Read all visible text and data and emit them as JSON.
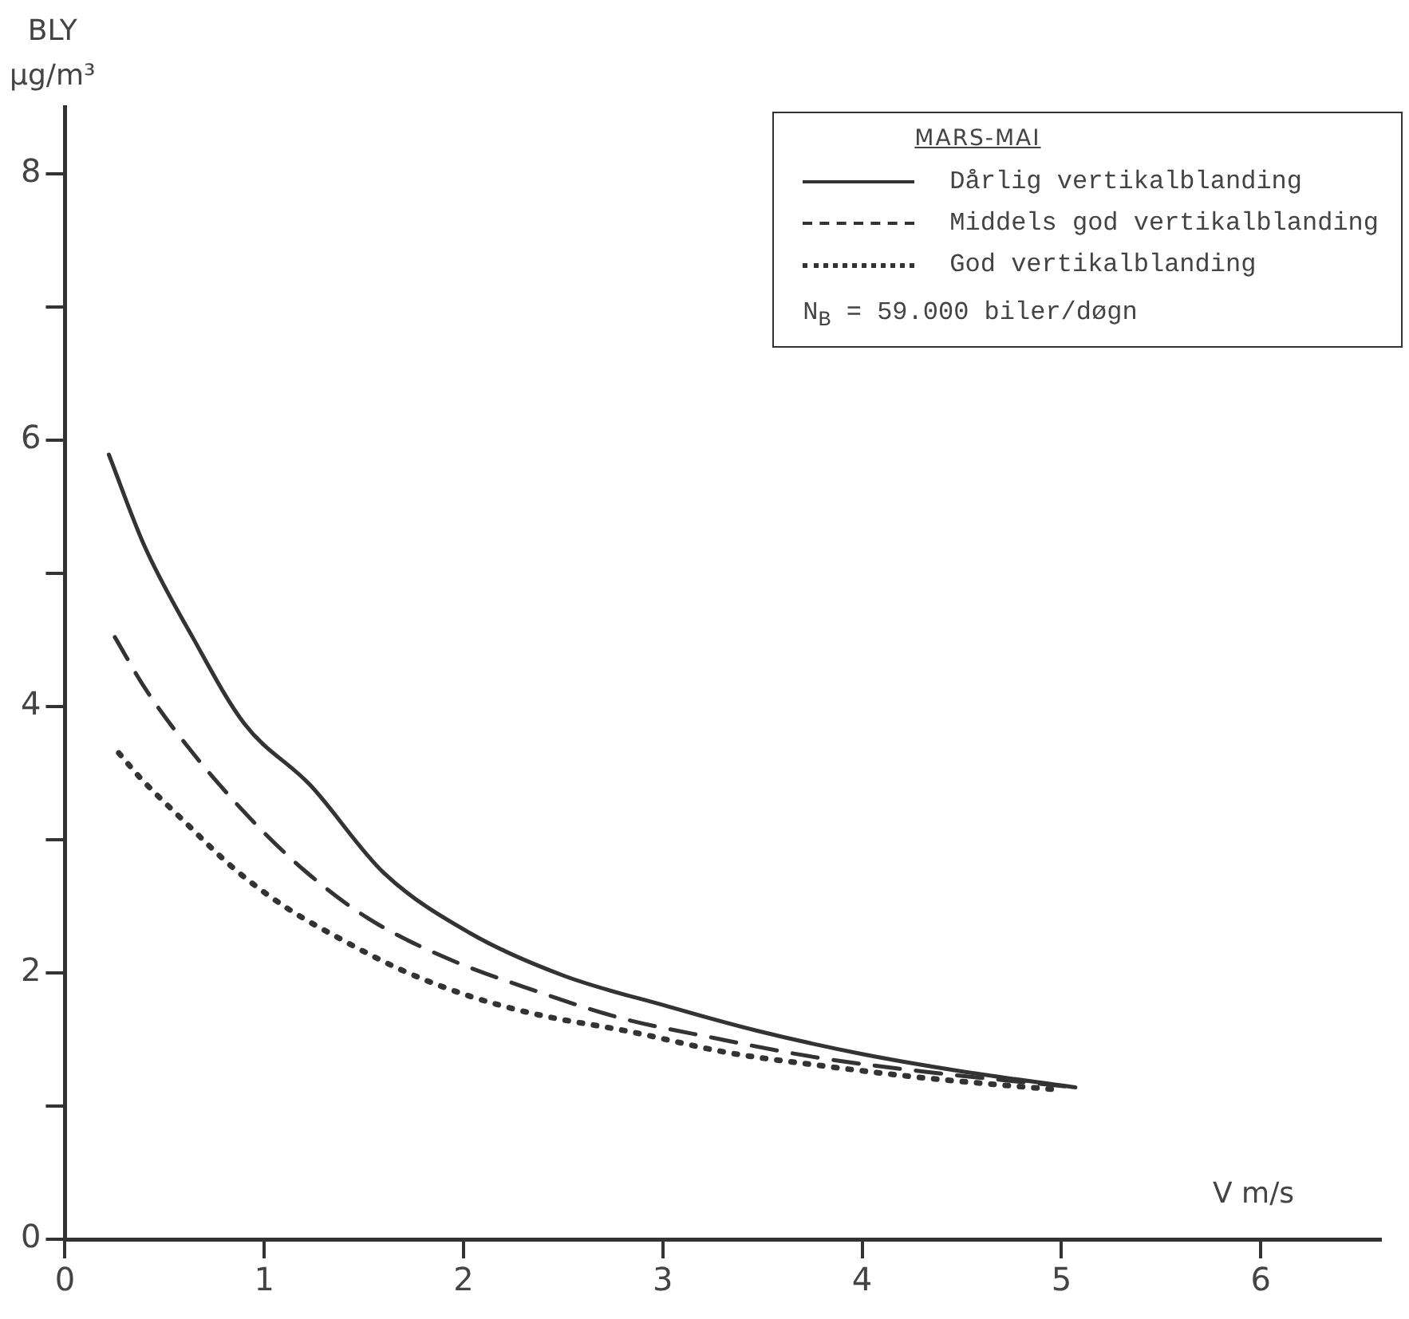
{
  "chart_data": {
    "type": "line",
    "xlabel": "V m/s",
    "ylabel": "BLY\nµg/m³",
    "legend_title": "MARS-MAI",
    "legend": "top right",
    "grid": false,
    "marker": "none",
    "xlim": [
      0,
      6.6
    ],
    "xticks": [
      0,
      1,
      2,
      3,
      4,
      5,
      6
    ],
    "ylim": [
      0,
      8.5
    ],
    "yticks": [
      0,
      {
        "value": 1,
        "label": null
      },
      2,
      {
        "value": 3,
        "label": null
      },
      4,
      {
        "value": 5,
        "label": null
      },
      6,
      {
        "value": 7,
        "label": null
      },
      8
    ],
    "annotations": [
      "N$_{B}$ = 59.000 biler/døgn"
    ],
    "series": [
      {
        "name": "Dårlig vertikalblanding",
        "color": "#333333",
        "line_style": "solid",
        "x": [
          0.22,
          0.4,
          0.64,
          0.9,
          1.23,
          1.6,
          2.03,
          2.5,
          3.02,
          3.46,
          4.0,
          4.5,
          5.07
        ],
        "values": [
          5.89,
          5.2,
          4.52,
          3.87,
          3.41,
          2.75,
          2.3,
          1.98,
          1.75,
          1.57,
          1.39,
          1.26,
          1.14
        ]
      },
      {
        "name": "Middels god vertikalblanding",
        "color": "#333333",
        "line_style": "dashed",
        "x": [
          0.25,
          0.4,
          0.62,
          0.91,
          1.2,
          1.52,
          1.9,
          2.35,
          2.79,
          3.26,
          3.75,
          4.3,
          5.07
        ],
        "values": [
          4.52,
          4.14,
          3.69,
          3.19,
          2.77,
          2.41,
          2.12,
          1.87,
          1.66,
          1.51,
          1.37,
          1.26,
          1.14
        ]
      },
      {
        "name": "God vertikalblanding",
        "color": "#333333",
        "line_style": "dotted",
        "x": [
          0.27,
          0.38,
          0.61,
          0.85,
          1.11,
          1.4,
          1.69,
          2.02,
          2.36,
          2.83,
          3.33,
          3.81,
          4.32,
          5.0
        ],
        "values": [
          3.65,
          3.46,
          3.12,
          2.78,
          2.49,
          2.24,
          2.02,
          1.83,
          1.69,
          1.56,
          1.4,
          1.3,
          1.21,
          1.12
        ]
      }
    ]
  }
}
